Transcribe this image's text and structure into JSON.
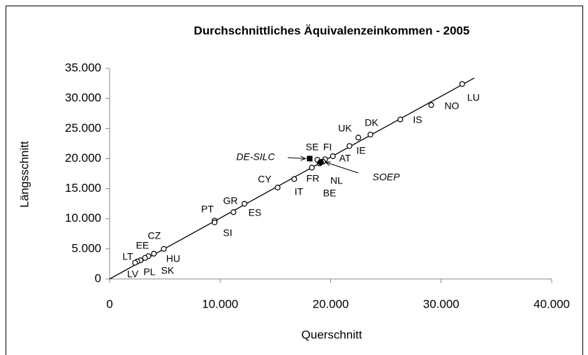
{
  "chart_data": {
    "type": "scatter",
    "title": "Durchschnittliches Äquivalenzeinkommen - 2005",
    "x_label": "Querschnitt",
    "y_label": "Längsschnitt",
    "labels": [
      "LU",
      "NO",
      "IS",
      "DK",
      "UK",
      "IE",
      "FI",
      "AT",
      "SE",
      "NL",
      "BE",
      "FR",
      "IT",
      "CY",
      "ES",
      "GR",
      "PT",
      "SI",
      "HU",
      "CZ",
      "EE",
      "SK",
      "PL",
      "LT",
      "LV"
    ],
    "x": [
      31900,
      29100,
      26300,
      23600,
      22500,
      21700,
      20200,
      19500,
      18800,
      19300,
      19000,
      18300,
      16700,
      15200,
      12200,
      11200,
      9500,
      9500,
      4900,
      4000,
      3500,
      3200,
      2800,
      2500,
      2300
    ],
    "y": [
      32400,
      28900,
      26500,
      24000,
      23500,
      22100,
      20400,
      19900,
      19800,
      19500,
      19200,
      18500,
      16600,
      15200,
      12500,
      11100,
      9700,
      9400,
      5000,
      4200,
      3800,
      3500,
      3100,
      2900,
      2700
    ],
    "color": "#000000",
    "highlights": [
      {
        "label": "DE-SILC",
        "x": 18100,
        "y": 20000,
        "marker": "square"
      },
      {
        "label": "SOEP",
        "x": 19100,
        "y": 19400,
        "marker": "circle"
      }
    ],
    "trend_line": {
      "x": [
        0,
        33000
      ],
      "y": [
        0,
        33400
      ]
    },
    "xlim": [
      0,
      40000
    ],
    "ylim": [
      0,
      35000
    ],
    "xticks": [
      0,
      {
        "value": 10000,
        "label": "10.000"
      },
      {
        "value": 20000,
        "label": "20.000"
      },
      {
        "value": 30000,
        "label": "30.000"
      },
      {
        "value": 40000,
        "label": "40.000"
      }
    ],
    "yticks": [
      0,
      {
        "value": 5000,
        "label": "5.000"
      },
      {
        "value": 10000,
        "label": "10.000"
      },
      {
        "value": 15000,
        "label": "15.000"
      },
      {
        "value": 20000,
        "label": "20.000"
      },
      {
        "value": 25000,
        "label": "25.000"
      },
      {
        "value": 30000,
        "label": "30.000"
      },
      {
        "value": 35000,
        "label": "35.000"
      }
    ],
    "grid": false
  }
}
